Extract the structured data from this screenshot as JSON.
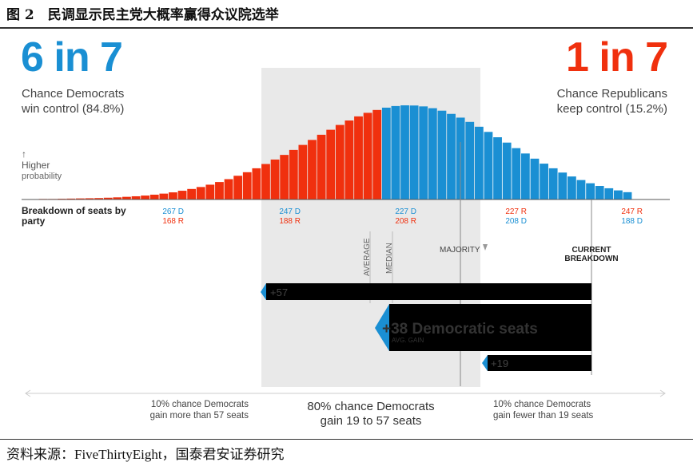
{
  "figure_title": "图 2　民调显示民主党大概率赢得众议院选举",
  "source": "资料来源：FiveThirtyEight，国泰君安证券研究",
  "headline": {
    "dem_big": "6 in 7",
    "dem_sub_line1": "Chance Democrats",
    "dem_sub_line2": "win control (84.8%)",
    "rep_big": "1 in 7",
    "rep_sub_line1": "Chance Republicans",
    "rep_sub_line2": "keep control (15.2%)"
  },
  "labels": {
    "higher_arrow": "↑",
    "higher": "Higher",
    "probability": "probability",
    "breakdown": "Breakdown of seats by party",
    "average": "AVERAGE",
    "median": "MEDIAN",
    "majority": "MAJORITY",
    "current_line1": "CURRENT",
    "current_line2": "BREAKDOWN"
  },
  "colors": {
    "dem": "#1a8fd3",
    "rep": "#f0300e",
    "shade": "#e9e9e9",
    "dark_bar": "#000000"
  },
  "chart_data": {
    "type": "bar",
    "title": "",
    "x": [
      145,
      147,
      149,
      151,
      153,
      155,
      157,
      159,
      161,
      163,
      165,
      167,
      169,
      171,
      173,
      175,
      177,
      179,
      181,
      183,
      185,
      187,
      189,
      191,
      193,
      195,
      197,
      199,
      201,
      203,
      205,
      207,
      209,
      211,
      213,
      215,
      217,
      219,
      221,
      223,
      225,
      227,
      229,
      231,
      233,
      235,
      237,
      239,
      241,
      243,
      245,
      247,
      249,
      251,
      253,
      255,
      257,
      259,
      261,
      263,
      265,
      267,
      269,
      271
    ],
    "x_meaning": "Democratic seats",
    "values": [
      0.3,
      0.3,
      0.4,
      0.5,
      0.6,
      0.7,
      0.8,
      1.0,
      1.2,
      1.5,
      1.8,
      2.2,
      2.7,
      3.3,
      4.0,
      4.9,
      5.9,
      7.0,
      8.3,
      9.8,
      11.4,
      13.3,
      15.3,
      17.5,
      19.9,
      22.4,
      25.0,
      27.8,
      30.6,
      33.4,
      36.3,
      39.1,
      41.8,
      44.3,
      46.6,
      48.6,
      50.2,
      51.5,
      52.4,
      52.8,
      52.7,
      52.2,
      51.2,
      49.8,
      48.0,
      45.9,
      43.5,
      40.8,
      37.9,
      34.9,
      31.9,
      28.8,
      25.8,
      22.9,
      20.1,
      17.5,
      15.1,
      12.9,
      10.9,
      9.1,
      7.6,
      6.3,
      5.1,
      4.1
    ],
    "value_unit": "relative probability",
    "majority_threshold": 218,
    "dem_color": "#1a8fd3",
    "rep_color": "#f0300e",
    "tick_labels": [
      {
        "dem": "267 D",
        "rep": "168 R"
      },
      {
        "dem": "247 D",
        "rep": "188 R"
      },
      {
        "dem": "227 D",
        "rep": "208 R"
      },
      {
        "rep": "227 R",
        "dem": "208 D"
      },
      {
        "rep": "247 R",
        "dem": "188 D"
      }
    ],
    "ranges": [
      {
        "label": "+57",
        "dem_gain": 57
      },
      {
        "label": "+38 Democratic seats",
        "sublabel": "AVG. GAIN",
        "dem_gain": 38
      },
      {
        "label": "+19",
        "dem_gain": 19
      }
    ],
    "bottom_annotations": [
      {
        "line1": "10% chance Democrats",
        "line2": "gain more than 57 seats"
      },
      {
        "line1": "80% chance Democrats",
        "line2": "gain 19 to 57 seats"
      },
      {
        "line1": "10% chance Democrats",
        "line2": "gain fewer than 19 seats"
      }
    ]
  }
}
